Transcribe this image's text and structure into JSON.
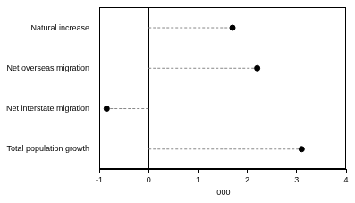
{
  "chart_data": {
    "type": "dot",
    "categories": [
      "Natural increase",
      "Net overseas migration",
      "Net interstate migration",
      "Total population growth"
    ],
    "values": [
      1.7,
      2.2,
      -0.85,
      3.1
    ],
    "color": "#000000",
    "marker": "circle",
    "line_style": "dashed",
    "orientation": "horizontal",
    "x_label": "'000",
    "xlim": [
      -1,
      4
    ],
    "xticks": [
      -1,
      0,
      1,
      2,
      3,
      4
    ],
    "grid": false
  }
}
